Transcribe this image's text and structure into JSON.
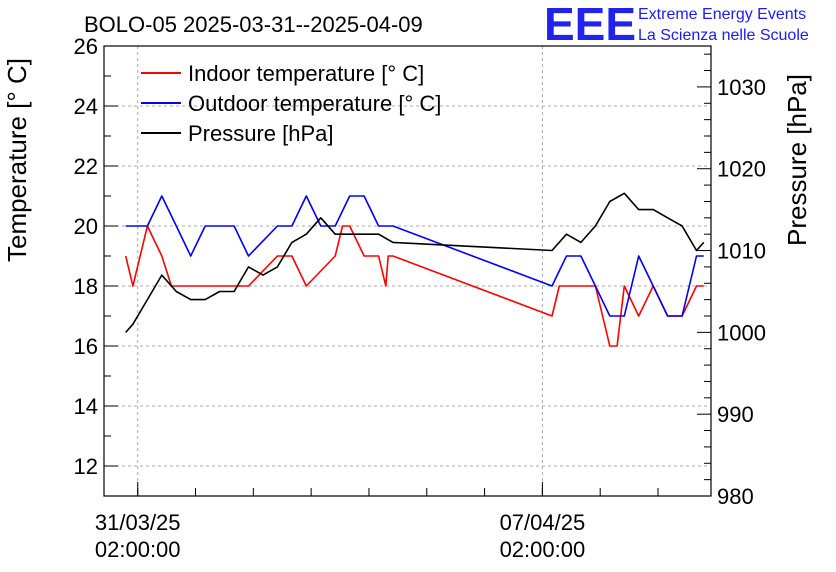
{
  "chart_data": {
    "type": "line",
    "title": "BOLO-05 2025-03-31--2025-04-09",
    "ylabel": "Temperature [° C]",
    "y2label": "Pressure [hPa]",
    "ylim": [
      11,
      26
    ],
    "y2lim": [
      980,
      1035
    ],
    "yticks": [
      "12",
      "14",
      "16",
      "18",
      "20",
      "22",
      "24",
      "26"
    ],
    "y2ticks": [
      "980",
      "990",
      "1000",
      "1010",
      "1020",
      "1030"
    ],
    "xlim": [
      "2025-03-30T12:00",
      "2025-04-10T00:00"
    ],
    "xticks": [
      {
        "x": "2025-03-31T02:00",
        "line1": "31/03/25",
        "line2": "02:00:00"
      },
      {
        "x": "2025-04-07T02:00",
        "line1": "07/04/25",
        "line2": "02:00:00"
      }
    ],
    "grid": true,
    "legend_placement": "top-left",
    "series": [
      {
        "name": "Indoor temperature [° C]",
        "color": "#ff0000",
        "axis": "left",
        "x": [
          "2025-03-30T21:00",
          "2025-03-31T00:00",
          "2025-03-31T06:00",
          "2025-03-31T12:00",
          "2025-03-31T16:00",
          "2025-04-01T00:00",
          "2025-04-01T12:00",
          "2025-04-02T00:00",
          "2025-04-02T12:00",
          "2025-04-02T18:00",
          "2025-04-03T00:00",
          "2025-04-03T12:00",
          "2025-04-03T15:00",
          "2025-04-03T18:00",
          "2025-04-04T00:00",
          "2025-04-04T06:00",
          "2025-04-04T09:00",
          "2025-04-04T10:00",
          "2025-04-04T11:00",
          "2025-04-04T12:00",
          "2025-04-07T06:00",
          "2025-04-07T09:00",
          "2025-04-07T18:00",
          "2025-04-08T00:00",
          "2025-04-08T06:00",
          "2025-04-08T09:00",
          "2025-04-08T12:00",
          "2025-04-08T18:00",
          "2025-04-09T00:00",
          "2025-04-09T06:00",
          "2025-04-09T12:00",
          "2025-04-09T18:00",
          "2025-04-09T21:00"
        ],
        "y": [
          19,
          18,
          20,
          19,
          18,
          18,
          18,
          18,
          19,
          19,
          18,
          19,
          20,
          20,
          19,
          19,
          18,
          19,
          19,
          19,
          17,
          18,
          18,
          18,
          16,
          16,
          18,
          17,
          18,
          17,
          17,
          18,
          18
        ]
      },
      {
        "name": "Outdoor temperature [° C]",
        "color": "#0000ff",
        "axis": "left",
        "x": [
          "2025-03-30T21:00",
          "2025-03-31T06:00",
          "2025-03-31T12:00",
          "2025-03-31T18:00",
          "2025-04-01T00:00",
          "2025-04-01T06:00",
          "2025-04-01T18:00",
          "2025-04-02T00:00",
          "2025-04-02T12:00",
          "2025-04-02T18:00",
          "2025-04-03T00:00",
          "2025-04-03T06:00",
          "2025-04-03T12:00",
          "2025-04-03T18:00",
          "2025-04-04T00:00",
          "2025-04-04T06:00",
          "2025-04-04T12:00",
          "2025-04-07T06:00",
          "2025-04-07T12:00",
          "2025-04-07T18:00",
          "2025-04-08T00:00",
          "2025-04-08T06:00",
          "2025-04-08T12:00",
          "2025-04-08T18:00",
          "2025-04-09T00:00",
          "2025-04-09T06:00",
          "2025-04-09T12:00",
          "2025-04-09T18:00",
          "2025-04-09T21:00"
        ],
        "y": [
          20,
          20,
          21,
          20,
          19,
          20,
          20,
          19,
          20,
          20,
          21,
          20,
          20,
          21,
          21,
          20,
          20,
          18,
          19,
          19,
          18,
          17,
          17,
          19,
          18,
          17,
          17,
          19,
          19
        ]
      },
      {
        "name": "Pressure [hPa]",
        "color": "#000000",
        "axis": "right",
        "x": [
          "2025-03-30T21:00",
          "2025-03-31T00:00",
          "2025-03-31T06:00",
          "2025-03-31T12:00",
          "2025-03-31T18:00",
          "2025-04-01T00:00",
          "2025-04-01T06:00",
          "2025-04-01T12:00",
          "2025-04-01T18:00",
          "2025-04-02T00:00",
          "2025-04-02T06:00",
          "2025-04-02T12:00",
          "2025-04-02T18:00",
          "2025-04-03T00:00",
          "2025-04-03T06:00",
          "2025-04-03T12:00",
          "2025-04-03T15:00",
          "2025-04-03T18:00",
          "2025-04-04T00:00",
          "2025-04-04T06:00",
          "2025-04-04T12:00",
          "2025-04-07T06:00",
          "2025-04-07T12:00",
          "2025-04-07T18:00",
          "2025-04-08T00:00",
          "2025-04-08T06:00",
          "2025-04-08T12:00",
          "2025-04-08T18:00",
          "2025-04-09T00:00",
          "2025-04-09T06:00",
          "2025-04-09T12:00",
          "2025-04-09T18:00",
          "2025-04-09T21:00"
        ],
        "y": [
          1000,
          1001,
          1004,
          1007,
          1005,
          1004,
          1004,
          1005,
          1005,
          1008,
          1007,
          1008,
          1011,
          1012,
          1014,
          1012,
          1012,
          1012,
          1012,
          1012,
          1011,
          1010,
          1012,
          1011,
          1013,
          1016,
          1017,
          1015,
          1015,
          1014,
          1013,
          1010,
          1011
        ]
      }
    ]
  },
  "logo": {
    "mark": "EEE",
    "line1": "Extreme Energy Events",
    "line2": "La Scienza nelle Scuole"
  }
}
